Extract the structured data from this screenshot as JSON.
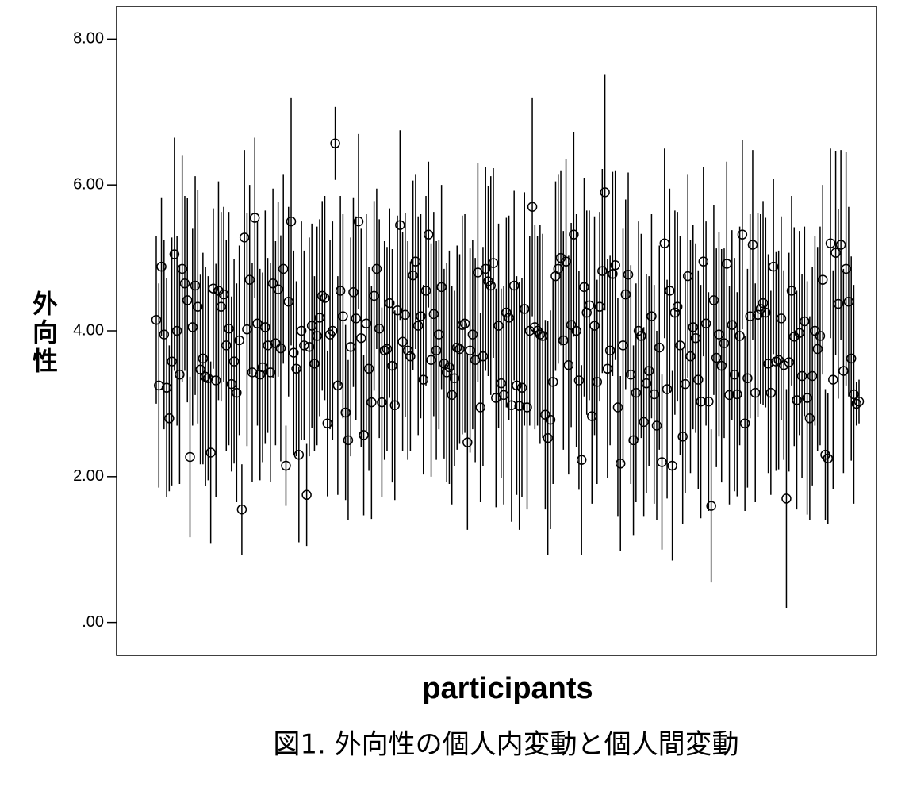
{
  "chart_data": {
    "type": "errorbar",
    "y_label": "外向性",
    "x_label": "participants",
    "caption": "図1.  外向性の個人内変動と個人間変動",
    "color": "#000000",
    "ylim": [
      -0.45,
      8.45
    ],
    "yticks": [
      {
        "value": 0,
        "label": ".00"
      },
      {
        "value": 2,
        "label": "2.00"
      },
      {
        "value": 4,
        "label": "4.00"
      },
      {
        "value": 6,
        "label": "6.00"
      },
      {
        "value": 8,
        "label": "8.00"
      }
    ],
    "values": [
      4.15,
      3.25,
      4.88,
      3.95,
      3.22,
      2.8,
      3.58,
      5.05,
      4.0,
      3.4,
      4.85,
      4.65,
      4.42,
      2.27,
      4.05,
      4.62,
      4.33,
      3.47,
      3.62,
      3.37,
      3.35,
      2.33,
      4.58,
      3.32,
      4.55,
      4.33,
      4.5,
      3.8,
      4.03,
      3.27,
      3.58,
      3.15,
      3.87,
      1.55,
      5.28,
      4.02,
      4.7,
      3.43,
      5.55,
      4.1,
      3.4,
      3.5,
      4.05,
      3.8,
      3.43,
      4.65,
      3.83,
      4.57,
      3.76,
      4.85,
      2.15,
      4.4,
      5.5,
      3.7,
      3.48,
      2.3,
      4.0,
      3.8,
      1.75,
      3.78,
      4.07,
      3.55,
      3.93,
      4.18,
      4.48,
      4.45,
      2.73,
      3.95,
      4.0,
      6.57,
      3.25,
      4.55,
      4.2,
      2.88,
      2.5,
      3.78,
      4.53,
      4.17,
      5.5,
      3.9,
      2.57,
      4.1,
      3.48,
      3.02,
      4.48,
      4.85,
      4.03,
      3.02,
      3.73,
      3.75,
      4.38,
      3.52,
      2.98,
      4.28,
      5.45,
      3.85,
      4.22,
      3.73,
      3.65,
      4.76,
      4.95,
      4.07,
      4.2,
      3.33,
      4.55,
      5.32,
      3.6,
      4.23,
      3.73,
      3.95,
      4.6,
      3.55,
      3.43,
      3.5,
      3.12,
      3.35,
      3.77,
      3.75,
      4.08,
      4.1,
      2.47,
      3.73,
      3.95,
      3.6,
      4.8,
      2.95,
      3.65,
      4.85,
      4.68,
      4.62,
      4.93,
      3.08,
      4.07,
      3.28,
      3.12,
      4.25,
      4.18,
      2.98,
      4.62,
      3.25,
      2.97,
      3.22,
      4.3,
      2.95,
      4.0,
      5.7,
      4.05,
      4.0,
      3.95,
      3.93,
      2.85,
      2.53,
      2.78,
      3.3,
      4.75,
      4.85,
      5.0,
      3.87,
      4.95,
      3.53,
      4.08,
      5.32,
      4.0,
      3.32,
      2.23,
      4.6,
      4.25,
      4.35,
      2.83,
      4.07,
      3.3,
      4.33,
      4.82,
      5.9,
      3.48,
      3.73,
      4.78,
      4.9,
      2.95,
      2.18,
      3.8,
      4.5,
      4.77,
      3.4,
      2.5,
      3.15,
      4.0,
      3.93,
      2.75,
      3.28,
      3.45,
      4.2,
      3.13,
      2.7,
      3.77,
      2.2,
      5.2,
      3.2,
      4.55,
      2.15,
      4.25,
      4.33,
      3.8,
      2.55,
      3.27,
      4.75,
      3.65,
      4.05,
      3.9,
      3.33,
      3.03,
      4.95,
      4.1,
      3.03,
      1.6,
      4.42,
      3.63,
      3.95,
      3.52,
      3.83,
      4.92,
      3.12,
      4.08,
      3.4,
      3.13,
      3.93,
      5.32,
      2.73,
      3.35,
      4.2,
      5.18,
      3.15,
      4.22,
      4.3,
      4.38,
      4.25,
      3.55,
      3.15,
      4.88,
      3.58,
      3.6,
      4.17,
      3.53,
      1.7,
      3.57,
      4.55,
      3.92,
      3.05,
      3.97,
      3.38,
      4.13,
      3.08,
      2.8,
      3.38,
      4.0,
      3.75,
      3.93,
      4.7,
      2.3,
      2.25,
      5.2,
      3.33,
      5.07,
      4.37,
      5.18,
      3.45,
      4.85,
      4.4,
      3.62,
      3.13,
      3.0,
      3.03
    ],
    "errors": [
      1.15,
      1.4,
      0.95,
      1.3,
      1.5,
      1.0,
      1.7,
      1.6,
      1.3,
      1.5,
      1.55,
      1.2,
      1.4,
      1.1,
      1.35,
      1.5,
      1.6,
      1.3,
      1.45,
      1.5,
      1.4,
      1.25,
      1.1,
      1.6,
      1.5,
      1.3,
      1.2,
      1.45,
      1.6,
      1.2,
      1.4,
      1.5,
      1.3,
      0.62,
      1.2,
      1.6,
      1.3,
      1.5,
      1.1,
      1.4,
      1.45,
      1.3,
      1.6,
      1.2,
      1.5,
      1.3,
      1.4,
      1.2,
      1.55,
      1.3,
      0.55,
      1.3,
      1.7,
      1.4,
      1.2,
      1.2,
      1.5,
      1.3,
      0.7,
      1.5,
      1.4,
      1.2,
      1.5,
      1.35,
      1.3,
      1.4,
      1.0,
      1.3,
      1.5,
      0.5,
      1.5,
      1.3,
      1.4,
      1.2,
      1.1,
      1.5,
      1.3,
      1.4,
      1.2,
      1.5,
      1.1,
      1.5,
      1.4,
      1.6,
      1.3,
      1.1,
      1.5,
      1.3,
      1.5,
      1.4,
      1.3,
      1.6,
      1.3,
      1.3,
      1.3,
      1.5,
      1.4,
      1.5,
      1.3,
      1.3,
      1.2,
      1.5,
      1.4,
      1.3,
      1.3,
      1.0,
      1.6,
      1.4,
      1.5,
      1.3,
      1.4,
      1.3,
      1.5,
      1.6,
      1.5,
      1.2,
      1.4,
      1.3,
      1.5,
      1.5,
      1.2,
      1.4,
      1.3,
      1.4,
      1.5,
      1.3,
      1.5,
      1.4,
      1.3,
      1.5,
      1.3,
      1.5,
      1.4,
      1.3,
      1.5,
      1.3,
      1.4,
      1.6,
      1.3,
      1.5,
      1.7,
      1.5,
      1.6,
      1.4,
      1.3,
      1.5,
      1.4,
      1.3,
      1.5,
      1.4,
      1.3,
      1.6,
      1.5,
      1.4,
      1.3,
      1.3,
      1.2,
      1.5,
      1.4,
      1.5,
      1.4,
      1.4,
      1.6,
      1.5,
      1.3,
      1.5,
      1.4,
      1.3,
      1.2,
      1.5,
      1.4,
      1.3,
      1.4,
      1.62,
      1.5,
      1.3,
      1.4,
      1.3,
      1.5,
      1.2,
      1.6,
      1.3,
      1.4,
      1.5,
      1.3,
      1.5,
      1.5,
      1.4,
      1.3,
      1.5,
      1.3,
      1.4,
      1.5,
      1.3,
      1.4,
      1.2,
      1.3,
      1.5,
      1.4,
      1.3,
      1.4,
      1.3,
      1.5,
      1.2,
      1.5,
      1.4,
      1.6,
      1.4,
      1.3,
      1.5,
      1.6,
      1.3,
      1.4,
      1.5,
      1.05,
      1.3,
      1.5,
      1.4,
      1.6,
      1.3,
      1.4,
      1.5,
      1.3,
      1.6,
      1.4,
      1.5,
      1.3,
      1.2,
      1.5,
      1.4,
      1.3,
      1.5,
      1.4,
      1.3,
      1.4,
      1.3,
      1.5,
      1.4,
      1.2,
      1.5,
      1.5,
      1.4,
      1.3,
      1.5,
      1.5,
      1.3,
      1.5,
      1.5,
      1.4,
      1.4,
      1.3,
      1.6,
      1.4,
      1.5,
      1.3,
      1.4,
      1.5,
      1.3,
      0.9,
      0.9,
      1.3,
      1.5,
      1.4,
      1.3,
      1.3,
      1.4,
      1.6,
      1.3,
      1.4,
      1.5,
      0.3,
      0.3
    ]
  }
}
